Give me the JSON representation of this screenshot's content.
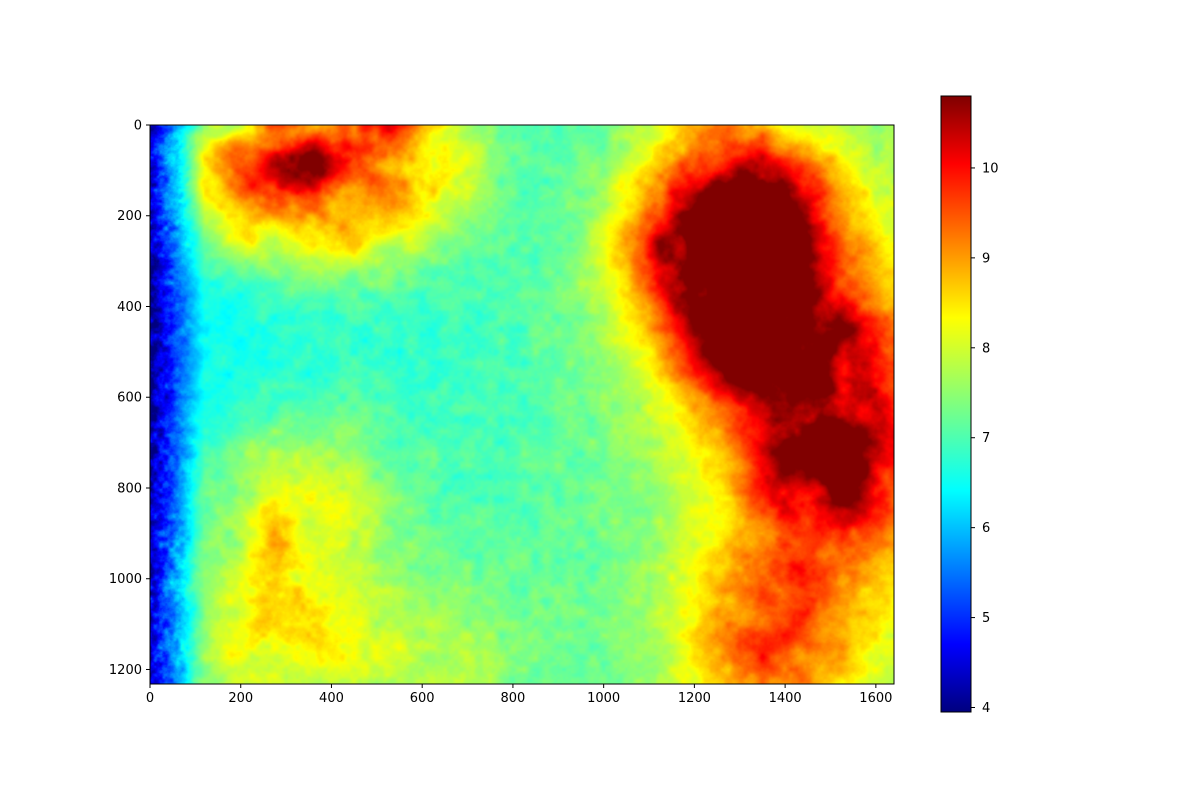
{
  "chart_data": {
    "type": "heatmap",
    "colormap": "jet",
    "image_extent": {
      "x": [
        0,
        1640
      ],
      "y": [
        0,
        1232
      ]
    },
    "y_axis_inverted": true,
    "xticks": [
      0,
      200,
      400,
      600,
      800,
      1000,
      1200,
      1400,
      1600
    ],
    "xtick_labels": [
      "0",
      "200",
      "400",
      "600",
      "800",
      "1000",
      "1200",
      "1400",
      "1600"
    ],
    "yticks": [
      0,
      200,
      400,
      600,
      800,
      1000,
      1200
    ],
    "ytick_labels": [
      "0",
      "200",
      "400",
      "600",
      "800",
      "1000",
      "1200"
    ],
    "colorbar": {
      "range": [
        3.95,
        10.8
      ],
      "ticks": [
        4,
        5,
        6,
        7,
        8,
        9,
        10
      ],
      "tick_labels": [
        "4",
        "5",
        "6",
        "7",
        "8",
        "9",
        "10"
      ]
    },
    "features": {
      "sun_center": [
        1295,
        505
      ],
      "sun_peak_value": 10.6,
      "sky_base_value": 6.3,
      "cloud_patches": [
        {
          "x": 400,
          "y": 80,
          "value": 8.6
        },
        {
          "x": 240,
          "y": 100,
          "value": 9.0
        },
        {
          "x": 540,
          "y": 40,
          "value": 8.5
        },
        {
          "x": 330,
          "y": 820,
          "value": 8.4
        },
        {
          "x": 260,
          "y": 1130,
          "value": 8.6
        },
        {
          "x": 1320,
          "y": 180,
          "value": 9.3
        },
        {
          "x": 1260,
          "y": 280,
          "value": 9.8
        },
        {
          "x": 1500,
          "y": 760,
          "value": 9.6
        },
        {
          "x": 1520,
          "y": 520,
          "value": 9.2
        },
        {
          "x": 1370,
          "y": 1110,
          "value": 9.0
        },
        {
          "x": 620,
          "y": 1180,
          "value": 7.8
        }
      ]
    }
  }
}
